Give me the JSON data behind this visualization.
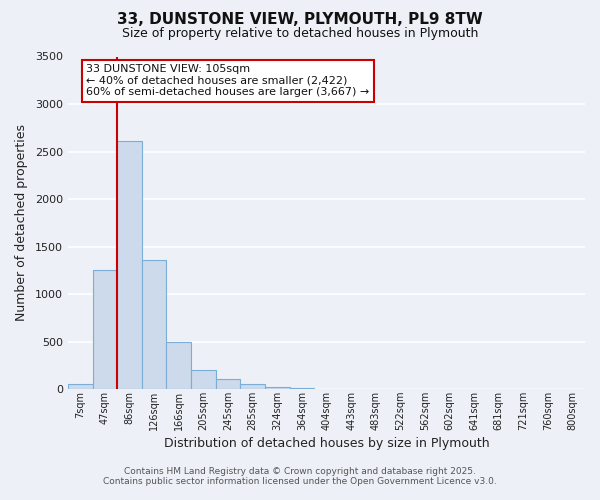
{
  "title_line1": "33, DUNSTONE VIEW, PLYMOUTH, PL9 8TW",
  "title_line2": "Size of property relative to detached houses in Plymouth",
  "xlabel": "Distribution of detached houses by size in Plymouth",
  "ylabel": "Number of detached properties",
  "bar_labels": [
    "7sqm",
    "47sqm",
    "86sqm",
    "126sqm",
    "166sqm",
    "205sqm",
    "245sqm",
    "285sqm",
    "324sqm",
    "364sqm",
    "404sqm",
    "443sqm",
    "483sqm",
    "522sqm",
    "562sqm",
    "602sqm",
    "641sqm",
    "681sqm",
    "721sqm",
    "760sqm",
    "800sqm"
  ],
  "bar_values": [
    50,
    1250,
    2610,
    1360,
    500,
    200,
    110,
    50,
    20,
    15,
    0,
    0,
    0,
    0,
    0,
    0,
    0,
    0,
    0,
    0,
    0
  ],
  "bar_color": "#ccdaeb",
  "bar_edge_color": "#7aaed6",
  "ylim": [
    0,
    3500
  ],
  "yticks": [
    0,
    500,
    1000,
    1500,
    2000,
    2500,
    3000,
    3500
  ],
  "red_line_index": 2,
  "annotation_title": "33 DUNSTONE VIEW: 105sqm",
  "annotation_line2": "← 40% of detached houses are smaller (2,422)",
  "annotation_line3": "60% of semi-detached houses are larger (3,667) →",
  "annotation_box_facecolor": "#ffffff",
  "annotation_box_edgecolor": "#cc0000",
  "red_line_color": "#cc0000",
  "footer_line1": "Contains HM Land Registry data © Crown copyright and database right 2025.",
  "footer_line2": "Contains public sector information licensed under the Open Government Licence v3.0.",
  "background_color": "#edf1f7",
  "grid_color": "#ffffff",
  "tick_label_color": "#222222",
  "axis_label_color": "#222222"
}
